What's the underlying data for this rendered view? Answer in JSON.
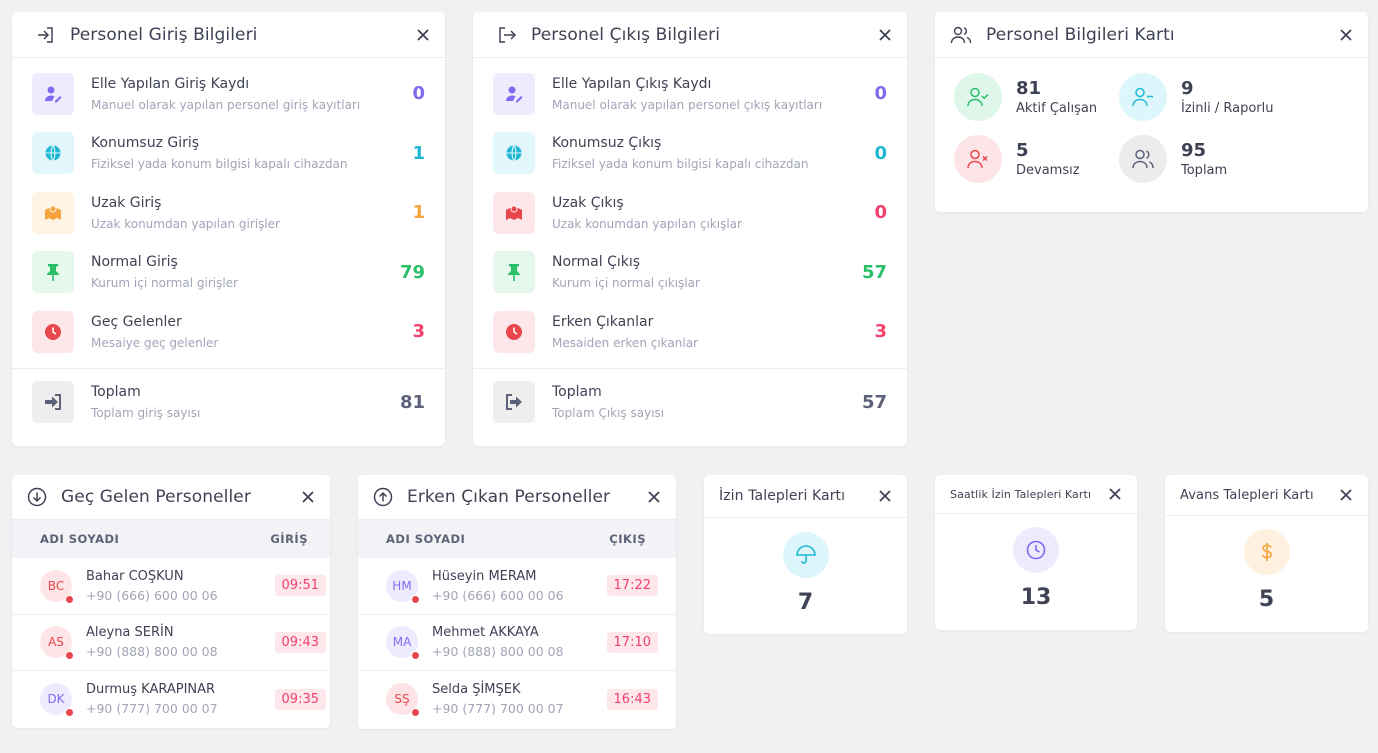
{
  "giris": {
    "title": "Personel Giriş Bilgileri",
    "rows": [
      {
        "label": "Elle Yapılan Giriş Kaydı",
        "desc": "Manuel olarak yapılan personel giriş kayıtları",
        "value": "0"
      },
      {
        "label": "Konumsuz Giriş",
        "desc": "Fiziksel yada konum bilgisi kapalı cihazdan",
        "value": "1"
      },
      {
        "label": "Uzak Giriş",
        "desc": "Uzak konumdan yapılan girişler",
        "value": "1"
      },
      {
        "label": "Normal Giriş",
        "desc": "Kurum içi normal girişler",
        "value": "79"
      },
      {
        "label": "Geç Gelenler",
        "desc": "Mesaiye geç gelenler",
        "value": "3"
      }
    ],
    "total": {
      "label": "Toplam",
      "desc": "Toplam giriş sayısı",
      "value": "81"
    }
  },
  "cikis": {
    "title": "Personel Çıkış Bilgileri",
    "rows": [
      {
        "label": "Elle Yapılan Çıkış Kaydı",
        "desc": "Manuel olarak yapılan personel çıkış kayıtları",
        "value": "0"
      },
      {
        "label": "Konumsuz Çıkış",
        "desc": "Fiziksel yada konum bilgisi kapalı cihazdan",
        "value": "0"
      },
      {
        "label": "Uzak Çıkış",
        "desc": "Uzak konumdan yapılan çıkışlar",
        "value": "0"
      },
      {
        "label": "Normal Çıkış",
        "desc": "Kurum içi normal çıkışlar",
        "value": "57"
      },
      {
        "label": "Erken Çıkanlar",
        "desc": "Mesaiden erken çıkanlar",
        "value": "3"
      }
    ],
    "total": {
      "label": "Toplam",
      "desc": "Toplam Çıkış sayısı",
      "value": "57"
    }
  },
  "kart": {
    "title": "Personel Bilgileri Kartı",
    "stats": [
      {
        "value": "81",
        "label": "Aktif Çalışan"
      },
      {
        "value": "9",
        "label": "İzinli / Raporlu"
      },
      {
        "value": "5",
        "label": "Devamsız"
      },
      {
        "value": "95",
        "label": "Toplam"
      }
    ]
  },
  "gec": {
    "title": "Geç Gelen Personeller",
    "col1": "ADI SOYADI",
    "col2": "GİRİŞ",
    "rows": [
      {
        "initials": "BC",
        "name": "Bahar COŞKUN",
        "phone": "+90 (666) 600 00 06",
        "time": "09:51"
      },
      {
        "initials": "AS",
        "name": "Aleyna SERİN",
        "phone": "+90 (888) 800 00 08",
        "time": "09:43"
      },
      {
        "initials": "DK",
        "name": "Durmuş KARAPINAR",
        "phone": "+90 (777) 700 00 07",
        "time": "09:35"
      }
    ]
  },
  "erken": {
    "title": "Erken Çıkan Personeller",
    "col1": "ADI SOYADI",
    "col2": "ÇIKIŞ",
    "rows": [
      {
        "initials": "HM",
        "name": "Hüseyin MERAM",
        "phone": "+90 (666) 600 00 06",
        "time": "17:22"
      },
      {
        "initials": "MA",
        "name": "Mehmet AKKAYA",
        "phone": "+90 (888) 800 00 08",
        "time": "17:10"
      },
      {
        "initials": "SŞ",
        "name": "Selda ŞİMŞEK",
        "phone": "+90 (777) 700 00 07",
        "time": "16:43"
      }
    ]
  },
  "izin": {
    "title": "İzin Talepleri Kartı",
    "value": "7"
  },
  "saatlik": {
    "title": "Saatlik İzin Talepleri Kartı",
    "value": "13"
  },
  "avans": {
    "title": "Avans Talepleri Kartı",
    "value": "5"
  },
  "colors": {
    "purple": "#7e6cf0",
    "cyan": "#1fb7d4",
    "orange": "#f5a33d",
    "green": "#2bbf6a",
    "red": "#f1416c"
  }
}
